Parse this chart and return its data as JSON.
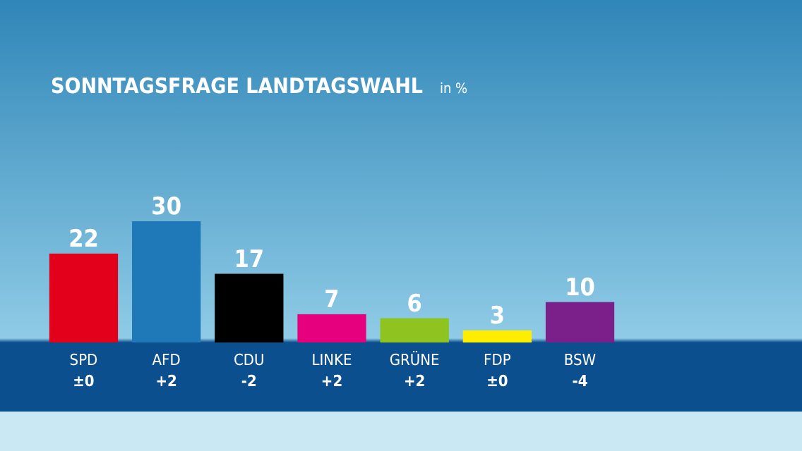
{
  "chart_data": {
    "type": "bar",
    "title": "SONNTAGSFRAGE LANDTAGSWAHL",
    "subtitle": "in %",
    "categories": [
      "SPD",
      "AFD",
      "CDU",
      "LINKE",
      "GRÜNE",
      "FDP",
      "BSW"
    ],
    "values": [
      22,
      30,
      17,
      7,
      6,
      3,
      10
    ],
    "colors": [
      "#e3001b",
      "#1f78b8",
      "#000000",
      "#e6007e",
      "#8fc31f",
      "#ffed00",
      "#7b1f8a"
    ],
    "data_labels": true,
    "annotations": [
      "±0",
      "+2",
      "-2",
      "+2",
      "+2",
      "±0",
      "-4"
    ]
  }
}
